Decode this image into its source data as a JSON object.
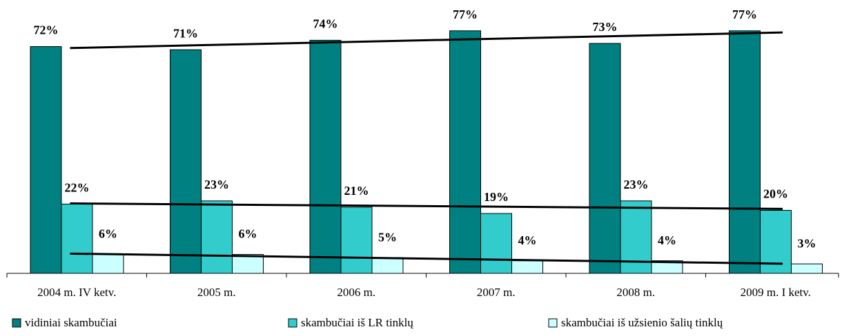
{
  "chart_data": {
    "type": "bar",
    "categories": [
      "2004 m. IV ketv.",
      "2005 m.",
      "2006 m.",
      "2007 m.",
      "2008 m.",
      "2009 m. I ketv."
    ],
    "series": [
      {
        "name": "vidiniai skambučiai",
        "color": "#008080",
        "values": [
          72,
          71,
          74,
          77,
          73,
          77
        ],
        "value_labels": [
          "72%",
          "71%",
          "74%",
          "77%",
          "73%",
          "77%"
        ]
      },
      {
        "name": "skambučiai iš LR tinklų",
        "color": "#33cccc",
        "values": [
          22,
          23,
          21,
          19,
          23,
          20
        ],
        "value_labels": [
          "22%",
          "23%",
          "21%",
          "19%",
          "23%",
          "20%"
        ]
      },
      {
        "name": "skambučiai iš užsienio šalių tinklų",
        "color": "#ccffff",
        "values": [
          6,
          6,
          5,
          4,
          4,
          3
        ],
        "value_labels": [
          "6%",
          "6%",
          "5%",
          "4%",
          "4%",
          "3%"
        ]
      }
    ],
    "ylim": [
      0,
      80
    ],
    "trendline": true
  }
}
